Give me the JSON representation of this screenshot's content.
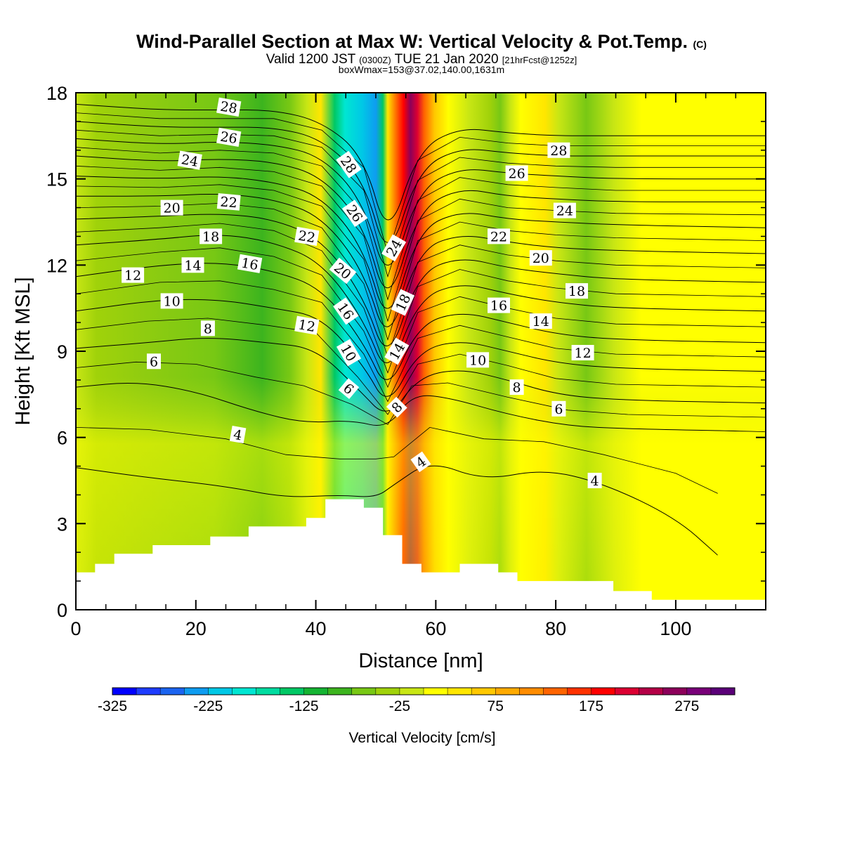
{
  "title": {
    "main": "Wind-Parallel Section at Max W: Vertical Velocity & Pot.Temp.",
    "copyright": "(C)",
    "valid_prefix": "Valid 1200 JST",
    "valid_utc": "(0300Z)",
    "valid_date": "TUE 21 Jan 2020",
    "forecast": "[21hrFcst@1252z]",
    "boxinfo": "boxWmax=153@37.02,140.00,1631m"
  },
  "chart_data": {
    "type": "heatmap",
    "xlabel": "Distance [nm]",
    "ylabel": "Height [Kft MSL]",
    "xlim": [
      0,
      115
    ],
    "ylim": [
      0,
      18
    ],
    "x_ticks": [
      "0",
      "20",
      "40",
      "60",
      "80",
      "100"
    ],
    "y_ticks": [
      "0",
      "3",
      "6",
      "9",
      "12",
      "15",
      "18"
    ],
    "colorbar": {
      "label": "Vertical Velocity [cm/s]",
      "tick_labels": [
        "-325",
        "-225",
        "-125",
        "-25",
        "75",
        "175",
        "275"
      ],
      "colors": [
        "#0000ff",
        "#1e3cff",
        "#1b64f0",
        "#0e9cf0",
        "#00c8e6",
        "#00e6d2",
        "#00dca0",
        "#00c864",
        "#14b432",
        "#3cb41e",
        "#78c814",
        "#a0d20a",
        "#c8e614",
        "#ffff00",
        "#ffe600",
        "#ffc800",
        "#ffaa00",
        "#ff8c00",
        "#ff6400",
        "#ff3200",
        "#ff0000",
        "#dc0032",
        "#b40046",
        "#8c005a",
        "#780078",
        "#5a0078"
      ]
    },
    "terrain": [
      [
        0,
        1.3
      ],
      [
        3.2,
        1.3
      ],
      [
        3.2,
        1.6
      ],
      [
        6.4,
        1.6
      ],
      [
        6.4,
        1.95
      ],
      [
        12.8,
        1.95
      ],
      [
        12.8,
        2.25
      ],
      [
        22.4,
        2.25
      ],
      [
        22.4,
        2.55
      ],
      [
        28.8,
        2.55
      ],
      [
        28.8,
        2.9
      ],
      [
        38.4,
        2.9
      ],
      [
        38.4,
        3.2
      ],
      [
        41.6,
        3.2
      ],
      [
        41.6,
        3.85
      ],
      [
        48,
        3.85
      ],
      [
        48,
        3.55
      ],
      [
        51.2,
        3.55
      ],
      [
        51.2,
        2.6
      ],
      [
        54.4,
        2.6
      ],
      [
        54.4,
        1.6
      ],
      [
        57.6,
        1.6
      ],
      [
        57.6,
        1.3
      ],
      [
        64,
        1.3
      ],
      [
        64,
        1.6
      ],
      [
        70.4,
        1.6
      ],
      [
        70.4,
        1.3
      ],
      [
        73.6,
        1.3
      ],
      [
        73.6,
        1.0
      ],
      [
        89.6,
        1.0
      ],
      [
        89.6,
        0.65
      ],
      [
        96,
        0.65
      ],
      [
        96,
        0.35
      ],
      [
        115,
        0.35
      ]
    ],
    "series": [
      {
        "name": "4",
        "x": [
          0,
          12,
          25,
          35,
          44,
          50,
          53,
          59,
          68,
          78,
          88,
          100,
          107
        ],
        "y": [
          4.95,
          4.6,
          4.3,
          3.9,
          4.0,
          3.9,
          4.35,
          5.2,
          4.5,
          4.9,
          4.4,
          3.2,
          1.9
        ]
      },
      {
        "name": "6",
        "x": [
          0,
          10,
          20,
          30,
          38,
          46,
          52,
          56,
          62,
          72,
          82,
          92,
          115
        ],
        "y": [
          7.75,
          7.95,
          7.6,
          6.9,
          6.5,
          6.6,
          6.3,
          7.5,
          7.4,
          6.8,
          6.4,
          6.3,
          6.2
        ]
      },
      {
        "name": "8",
        "x": [
          0,
          12,
          22,
          32,
          40,
          47,
          52,
          57,
          64,
          72,
          80,
          90,
          115
        ],
        "y": [
          9.1,
          9.3,
          9.5,
          9.3,
          9.1,
          7.7,
          6.6,
          8.1,
          8.4,
          8.0,
          7.5,
          7.3,
          7.2
        ]
      },
      {
        "name": "10",
        "x": [
          0,
          14,
          24,
          33,
          41,
          48,
          52,
          57,
          64,
          72,
          80,
          90,
          115
        ],
        "y": [
          10.4,
          10.8,
          10.8,
          10.5,
          10.2,
          8.5,
          7.0,
          9.0,
          9.4,
          9.0,
          8.6,
          8.4,
          8.3
        ]
      },
      {
        "name": "12",
        "x": [
          0,
          14,
          24,
          33,
          41,
          48,
          52,
          57,
          64,
          72,
          80,
          90,
          115
        ],
        "y": [
          11.6,
          12.0,
          12.1,
          11.8,
          11.2,
          9.3,
          7.5,
          9.9,
          10.4,
          10.0,
          9.6,
          9.4,
          9.3
        ]
      },
      {
        "name": "14",
        "x": [
          0,
          14,
          24,
          33,
          41,
          48,
          52,
          57,
          64,
          72,
          80,
          90,
          115
        ],
        "y": [
          12.7,
          12.9,
          13.1,
          12.8,
          12.1,
          10.1,
          8.0,
          10.8,
          11.4,
          11.0,
          10.7,
          10.5,
          10.4
        ]
      },
      {
        "name": "16",
        "x": [
          0,
          14,
          24,
          33,
          41,
          48,
          52,
          57,
          64,
          72,
          80,
          90,
          115
        ],
        "y": [
          13.6,
          13.7,
          13.8,
          13.6,
          12.9,
          10.9,
          8.5,
          11.7,
          12.3,
          11.9,
          11.7,
          11.5,
          11.4
        ]
      },
      {
        "name": "18",
        "x": [
          0,
          14,
          24,
          33,
          41,
          48,
          52,
          57,
          64,
          72,
          80,
          90,
          115
        ],
        "y": [
          14.4,
          14.4,
          14.5,
          14.3,
          13.7,
          11.8,
          9.1,
          12.5,
          13.1,
          12.8,
          12.6,
          12.5,
          12.4
        ]
      },
      {
        "name": "20",
        "x": [
          0,
          14,
          24,
          33,
          41,
          48,
          52,
          57,
          64,
          72,
          80,
          90,
          115
        ],
        "y": [
          15.1,
          15.0,
          15.1,
          14.9,
          14.4,
          12.6,
          9.7,
          13.2,
          13.9,
          13.6,
          13.5,
          13.4,
          13.3
        ]
      },
      {
        "name": "22",
        "x": [
          0,
          14,
          24,
          33,
          41,
          48,
          52,
          57,
          64,
          72,
          80,
          90,
          115
        ],
        "y": [
          15.8,
          15.6,
          15.7,
          15.6,
          15.1,
          13.4,
          10.4,
          13.9,
          14.7,
          14.4,
          14.3,
          14.2,
          14.2
        ]
      },
      {
        "name": "24",
        "x": [
          0,
          14,
          24,
          33,
          41,
          48,
          52,
          57,
          64,
          72,
          80,
          90,
          115
        ],
        "y": [
          16.4,
          16.2,
          16.3,
          16.2,
          15.8,
          14.2,
          11.2,
          14.6,
          15.4,
          15.2,
          15.1,
          15.0,
          15.0
        ]
      },
      {
        "name": "26",
        "x": [
          0,
          14,
          24,
          33,
          41,
          48,
          52,
          57,
          64,
          72,
          80,
          90,
          115
        ],
        "y": [
          17.0,
          16.8,
          16.8,
          16.8,
          16.4,
          15.0,
          12.0,
          15.3,
          16.1,
          15.9,
          15.8,
          15.8,
          15.8
        ]
      },
      {
        "name": "28",
        "x": [
          0,
          14,
          24,
          33,
          41,
          48,
          52,
          57,
          64,
          72,
          80,
          90,
          115
        ],
        "y": [
          17.6,
          17.4,
          17.4,
          17.4,
          17.0,
          15.8,
          12.8,
          16.0,
          16.8,
          16.6,
          16.5,
          16.5,
          16.5
        ]
      }
    ],
    "contour_labels": [
      {
        "text": "28",
        "x": 25.5,
        "y": 17.5,
        "rot": 10
      },
      {
        "text": "26",
        "x": 25.5,
        "y": 16.45,
        "rot": 10
      },
      {
        "text": "24",
        "x": 19,
        "y": 15.65,
        "rot": 10
      },
      {
        "text": "22",
        "x": 25.5,
        "y": 14.2,
        "rot": 5
      },
      {
        "text": "20",
        "x": 16,
        "y": 14.0,
        "rot": 0
      },
      {
        "text": "18",
        "x": 22.5,
        "y": 13.0,
        "rot": 0
      },
      {
        "text": "16",
        "x": 29,
        "y": 12.05,
        "rot": 10
      },
      {
        "text": "14",
        "x": 19.5,
        "y": 12.0,
        "rot": 0
      },
      {
        "text": "12",
        "x": 9.5,
        "y": 11.65,
        "rot": 0
      },
      {
        "text": "10",
        "x": 16,
        "y": 10.75,
        "rot": 0
      },
      {
        "text": "8",
        "x": 22,
        "y": 9.8,
        "rot": 0
      },
      {
        "text": "6",
        "x": 13,
        "y": 8.65,
        "rot": 0
      },
      {
        "text": "4",
        "x": 27,
        "y": 6.1,
        "rot": 10
      },
      {
        "text": "22",
        "x": 38.5,
        "y": 13.0,
        "rot": 10
      },
      {
        "text": "12",
        "x": 38.5,
        "y": 9.9,
        "rot": 10
      },
      {
        "text": "28",
        "x": 45.5,
        "y": 15.5,
        "rot": 55
      },
      {
        "text": "26",
        "x": 46.5,
        "y": 13.8,
        "rot": 55
      },
      {
        "text": "20",
        "x": 44.5,
        "y": 11.8,
        "rot": 40
      },
      {
        "text": "16",
        "x": 45,
        "y": 10.4,
        "rot": 55
      },
      {
        "text": "10",
        "x": 45.5,
        "y": 8.95,
        "rot": 60
      },
      {
        "text": "6",
        "x": 45.5,
        "y": 7.7,
        "rot": 40
      },
      {
        "text": "24",
        "x": 53,
        "y": 12.6,
        "rot": -60
      },
      {
        "text": "18",
        "x": 54.5,
        "y": 10.7,
        "rot": -65
      },
      {
        "text": "14",
        "x": 53.5,
        "y": 9.0,
        "rot": -60
      },
      {
        "text": "8",
        "x": 53.5,
        "y": 7.05,
        "rot": -45
      },
      {
        "text": "4",
        "x": 57.5,
        "y": 5.15,
        "rot": -35
      },
      {
        "text": "28",
        "x": 80.5,
        "y": 16.0,
        "rot": 0
      },
      {
        "text": "26",
        "x": 73.5,
        "y": 15.2,
        "rot": 0
      },
      {
        "text": "24",
        "x": 81.5,
        "y": 13.9,
        "rot": 0
      },
      {
        "text": "22",
        "x": 70.5,
        "y": 13.0,
        "rot": 0
      },
      {
        "text": "20",
        "x": 77.5,
        "y": 12.25,
        "rot": 0
      },
      {
        "text": "18",
        "x": 83.5,
        "y": 11.1,
        "rot": 0
      },
      {
        "text": "16",
        "x": 70.5,
        "y": 10.6,
        "rot": 0
      },
      {
        "text": "14",
        "x": 77.5,
        "y": 10.05,
        "rot": 0
      },
      {
        "text": "12",
        "x": 84.5,
        "y": 8.95,
        "rot": 0
      },
      {
        "text": "10",
        "x": 67,
        "y": 8.7,
        "rot": 0
      },
      {
        "text": "8",
        "x": 73.5,
        "y": 7.75,
        "rot": 0
      },
      {
        "text": "6",
        "x": 80.5,
        "y": 7.0,
        "rot": 0
      },
      {
        "text": "4",
        "x": 86.5,
        "y": 4.5,
        "rot": 0
      }
    ]
  }
}
